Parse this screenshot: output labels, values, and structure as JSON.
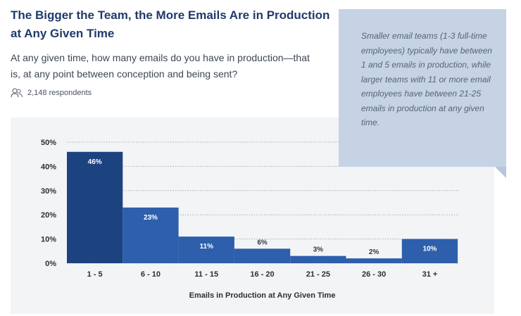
{
  "header": {
    "title": "The Bigger the Team, the More Emails Are in Production at Any Given Time",
    "question": "At any given time, how many emails do you have in production—that is, at any point between conception and being sent?",
    "respondents": "2,148 respondents",
    "respondents_icon": "people-icon"
  },
  "callout": {
    "text": "Smaller email teams (1-3 full-time employees) typically have between 1 and 5 emails in production, while larger teams with 11 or more email employees have between 21-25 emails in production at any given time."
  },
  "chart_data": {
    "type": "bar",
    "title": "",
    "xlabel": "Emails in Production at Any Given Time",
    "ylabel": "",
    "categories": [
      "1 - 5",
      "6 - 10",
      "11 - 15",
      "16 - 20",
      "21 - 25",
      "26 - 30",
      "31 +"
    ],
    "values": [
      46,
      23,
      11,
      6,
      3,
      2,
      10
    ],
    "value_labels": [
      "46%",
      "23%",
      "11%",
      "6%",
      "3%",
      "2%",
      "10%"
    ],
    "ylim": [
      0,
      50
    ],
    "yticks": [
      0,
      10,
      20,
      30,
      40,
      50
    ],
    "ytick_labels": [
      "0%",
      "10%",
      "20%",
      "30%",
      "40%",
      "50%"
    ],
    "grid": true,
    "grid_style": "dotted",
    "colors": {
      "bar_first": "#1d4280",
      "bar": "#2d5fac",
      "label_inside": "#ffffff",
      "label_outside": "#333a44",
      "axis_text": "#2b2f36",
      "grid": "#a7adb5"
    }
  }
}
